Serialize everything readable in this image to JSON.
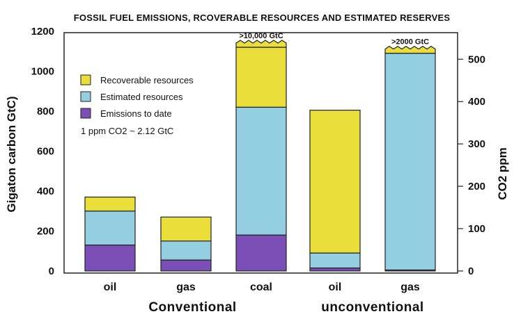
{
  "chart_data": {
    "type": "bar",
    "stacked": true,
    "title": "FOSSIL FUEL EMISSIONS, RCOVERABLE RESOURCES AND ESTIMATED  RESERVES",
    "ylabel": "Gigaton carbon GtC)",
    "y2label": "CO2 ppm",
    "ylim": [
      0,
      1200
    ],
    "y2lim": [
      0,
      566
    ],
    "yticks": [
      "1200",
      "1000",
      "800",
      "600",
      "400",
      "200",
      "0"
    ],
    "y2ticks": [
      "500",
      "400",
      "300",
      "200",
      "100",
      "0"
    ],
    "categories": [
      "oil",
      "gas",
      "coal",
      "oil",
      "gas"
    ],
    "groups": [
      {
        "label": "Conventional",
        "span": [
          0,
          2
        ]
      },
      {
        "label": "unconventional",
        "span": [
          3,
          4
        ]
      }
    ],
    "series": [
      {
        "name": "Emissions to date",
        "color": "#7b4fb5",
        "values": [
          130,
          55,
          180,
          15,
          5
        ]
      },
      {
        "name": "Estimated resources",
        "color": "#93cfe0",
        "values": [
          170,
          95,
          640,
          75,
          1085
        ]
      },
      {
        "name": "Recoverable resources",
        "color": "#eadf3a",
        "values": [
          70,
          120,
          300,
          715,
          0
        ]
      }
    ],
    "legend_order": [
      "Recoverable resources",
      "Estimated resources",
      "Emissions to date"
    ],
    "legend_position": "top-left",
    "note": "1 ppm CO2 ~ 2.12 GtC",
    "broken_tops": [
      {
        "category_index": 2,
        "label": ">10,000 GtC"
      },
      {
        "category_index": 4,
        "label": ">2000 GtC"
      }
    ],
    "grid": false
  }
}
